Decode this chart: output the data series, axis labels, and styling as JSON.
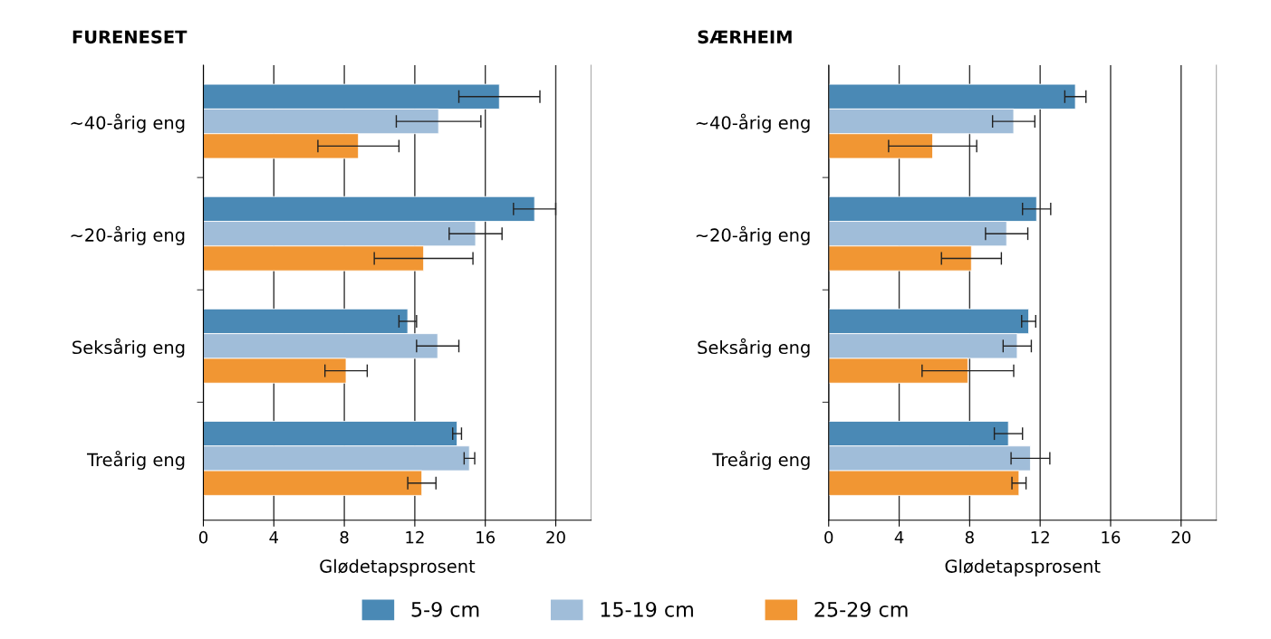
{
  "chart_data": [
    {
      "type": "bar",
      "orientation": "horizontal",
      "title": "FURENESET",
      "xlabel": "Glødetapsprosent",
      "categories": [
        "~40-årig eng",
        "~20-årig eng",
        "Seksårig eng",
        "Treårig eng"
      ],
      "xlim": [
        0,
        22
      ],
      "xticks": [
        0,
        4,
        8,
        12,
        16,
        20
      ],
      "grid": "x",
      "legend": "bottom",
      "series": [
        {
          "name": "5-9 cm",
          "color": "#4a89b5",
          "values": [
            16.8,
            18.8,
            11.6,
            14.4
          ],
          "errors": [
            2.3,
            1.2,
            0.5,
            0.25
          ]
        },
        {
          "name": "15-19 cm",
          "color": "#a0bdd9",
          "values": [
            13.35,
            15.45,
            13.3,
            15.1
          ],
          "errors": [
            2.4,
            1.5,
            1.2,
            0.3
          ]
        },
        {
          "name": "25-29 cm",
          "color": "#f19633",
          "values": [
            8.8,
            12.5,
            8.1,
            12.4
          ],
          "errors": [
            2.3,
            2.8,
            1.2,
            0.8
          ]
        }
      ]
    },
    {
      "type": "bar",
      "orientation": "horizontal",
      "title": "SÆRHEIM",
      "xlabel": "Glødetapsprosent",
      "categories": [
        "~40-årig eng",
        "~20-årig eng",
        "Seksårig eng",
        "Treårig eng"
      ],
      "xlim": [
        0,
        22
      ],
      "xticks": [
        0,
        4,
        8,
        12,
        16,
        20
      ],
      "grid": "x",
      "series": [
        {
          "color": "#4a89b5",
          "values": [
            14.0,
            11.8,
            11.35,
            10.2
          ],
          "errors": [
            0.6,
            0.8,
            0.4,
            0.8
          ]
        },
        {
          "color": "#a0bdd9",
          "values": [
            10.5,
            10.1,
            10.7,
            11.45
          ],
          "errors": [
            1.2,
            1.2,
            0.8,
            1.1
          ]
        },
        {
          "color": "#f19633",
          "values": [
            5.9,
            8.1,
            7.9,
            10.8
          ],
          "errors": [
            2.5,
            1.7,
            2.6,
            0.4
          ]
        }
      ]
    }
  ]
}
